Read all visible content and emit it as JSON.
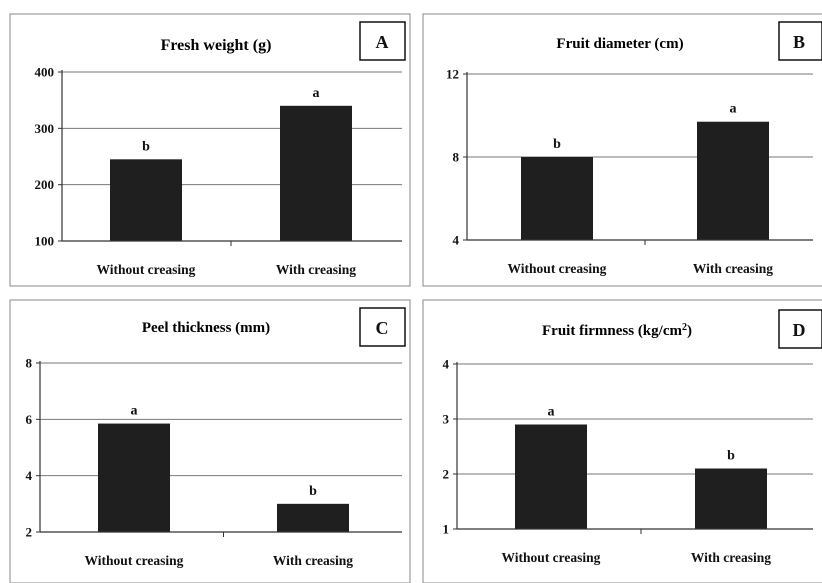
{
  "chart_data": [
    {
      "type": "bar",
      "panel": "A",
      "title": "Fresh weight (g)",
      "categories": [
        "Without creasing",
        "With creasing"
      ],
      "values": [
        245,
        340
      ],
      "significance": [
        "b",
        "a"
      ],
      "ylim": [
        100,
        400
      ],
      "yticks": [
        "100",
        "200",
        "300",
        "400"
      ],
      "grid": true,
      "bar_color": "#1f1f1f"
    },
    {
      "type": "bar",
      "panel": "B",
      "title": "Fruit diameter (cm)",
      "categories": [
        "Without creasing",
        "With creasing"
      ],
      "values": [
        8.0,
        9.7
      ],
      "significance": [
        "b",
        "a"
      ],
      "ylim": [
        4,
        12
      ],
      "yticks": [
        "4",
        "8",
        "12"
      ],
      "grid": true,
      "bar_color": "#1f1f1f"
    },
    {
      "type": "bar",
      "panel": "C",
      "title": "Peel thickness (mm)",
      "categories": [
        "Without creasing",
        "With creasing"
      ],
      "values": [
        5.85,
        3.0
      ],
      "significance": [
        "a",
        "b"
      ],
      "ylim": [
        2,
        8
      ],
      "yticks": [
        "2",
        "4",
        "6",
        "8"
      ],
      "grid": true,
      "bar_color": "#1f1f1f"
    },
    {
      "type": "bar",
      "panel": "D",
      "title": "Fruit firmness (kg/cm",
      "title_sup": "2",
      "title_end": ")",
      "categories": [
        "Without creasing",
        "With creasing"
      ],
      "values": [
        2.9,
        2.1
      ],
      "significance": [
        "a",
        "b"
      ],
      "ylim": [
        1,
        4
      ],
      "yticks": [
        "1",
        "2",
        "3",
        "4"
      ],
      "grid": true,
      "bar_color": "#1f1f1f"
    }
  ]
}
